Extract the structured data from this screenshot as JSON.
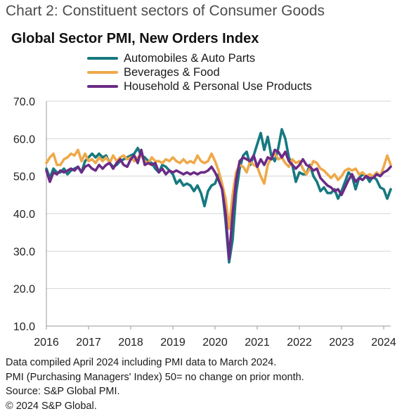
{
  "header": {
    "heading": "Chart 2: Constituent sectors of Consumer Goods",
    "title": "Global Sector PMI, New Orders Index"
  },
  "colors": {
    "automobiles": "#16797f",
    "beverages": "#efa94a",
    "household": "#6b2b86",
    "gridline": "#d4d4d4",
    "axis": "#9a9a9a"
  },
  "footer": {
    "notes": [
      "Data compiled April 2024 including PMI data to March 2024.",
      "PMI (Purchasing Managers' Index) 50= no change on prior month.",
      "Source: S&P Global PMI.",
      "© 2024 S&P Global."
    ]
  },
  "chart_data": {
    "type": "line",
    "title": "Global Sector PMI, New Orders Index",
    "xlabel": "",
    "ylabel": "",
    "ylim": [
      10,
      70
    ],
    "yticks": [
      "10.0",
      "20.0",
      "30.0",
      "40.0",
      "50.0",
      "60.0",
      "70.0"
    ],
    "xticks": [
      "2016",
      "2017",
      "2018",
      "2019",
      "2020",
      "2021",
      "2022",
      "2023",
      "2024"
    ],
    "xrange": [
      "2016-01",
      "2024-03"
    ],
    "grid": "horizontal",
    "legend_position": "top",
    "series": [
      {
        "name": "Automobiles & Auto Parts",
        "color_key": "automobiles",
        "start": "2016-01",
        "values": [
          52.0,
          49.5,
          52.0,
          51.0,
          51.0,
          52.0,
          50.5,
          51.5,
          52.0,
          52.5,
          51.0,
          54.0,
          55.0,
          56.0,
          55.0,
          56.0,
          55.0,
          55.5,
          53.5,
          52.5,
          53.0,
          54.0,
          54.5,
          55.0,
          55.5,
          56.0,
          57.5,
          55.5,
          55.0,
          54.0,
          53.5,
          52.0,
          51.0,
          53.0,
          52.5,
          51.5,
          50.5,
          48.0,
          49.0,
          47.5,
          48.0,
          47.5,
          46.0,
          47.5,
          45.5,
          42.0,
          46.0,
          47.5,
          48.0,
          50.5,
          47.0,
          38.0,
          27.0,
          33.0,
          45.5,
          52.0,
          55.5,
          56.5,
          53.0,
          55.5,
          58.5,
          61.5,
          57.0,
          60.5,
          55.5,
          54.0,
          57.5,
          62.5,
          60.0,
          55.0,
          53.0,
          48.5,
          51.0,
          50.5,
          50.5,
          53.0,
          50.0,
          48.5,
          46.0,
          47.0,
          45.5,
          45.5,
          46.5,
          44.0,
          46.0,
          48.5,
          51.0,
          50.0,
          46.5,
          49.5,
          50.5,
          50.0,
          48.5,
          50.0,
          49.0,
          47.0,
          46.5,
          44.0,
          46.5
        ]
      },
      {
        "name": "Beverages & Food",
        "color_key": "beverages",
        "start": "2016-01",
        "values": [
          53.5,
          55.0,
          56.0,
          53.0,
          53.0,
          54.5,
          55.0,
          56.0,
          55.5,
          57.0,
          54.0,
          56.0,
          54.0,
          54.5,
          53.5,
          55.0,
          54.0,
          55.0,
          53.5,
          55.5,
          54.0,
          55.0,
          55.5,
          54.5,
          55.0,
          54.0,
          55.0,
          55.5,
          54.0,
          53.5,
          55.0,
          54.0,
          54.0,
          53.5,
          54.5,
          54.0,
          55.0,
          54.0,
          53.5,
          54.5,
          53.5,
          54.0,
          53.5,
          55.5,
          54.0,
          53.5,
          54.0,
          56.0,
          54.0,
          51.5,
          48.0,
          44.0,
          36.0,
          45.0,
          51.0,
          53.0,
          52.5,
          51.0,
          54.0,
          53.0,
          52.5,
          50.0,
          48.0,
          53.0,
          55.0,
          56.0,
          54.5,
          55.0,
          53.5,
          52.5,
          54.5,
          53.5,
          54.0,
          52.0,
          50.5,
          52.0,
          54.0,
          53.5,
          52.0,
          51.5,
          50.5,
          49.5,
          50.5,
          49.0,
          50.0,
          51.5,
          52.0,
          51.5,
          52.0,
          50.5,
          51.0,
          50.0,
          50.5,
          50.0,
          51.0,
          50.0,
          52.5,
          55.5,
          53.0
        ]
      },
      {
        "name": "Household & Personal Use Products",
        "color_key": "household",
        "start": "2016-01",
        "values": [
          51.5,
          48.5,
          51.0,
          50.5,
          51.5,
          51.0,
          51.5,
          52.0,
          51.5,
          52.5,
          51.0,
          52.5,
          53.0,
          52.0,
          51.5,
          53.0,
          52.0,
          53.0,
          53.5,
          52.0,
          53.5,
          54.5,
          53.0,
          52.5,
          54.5,
          55.5,
          53.5,
          57.0,
          53.0,
          53.5,
          53.0,
          53.5,
          51.0,
          52.0,
          50.5,
          51.5,
          51.0,
          51.5,
          51.0,
          50.5,
          51.0,
          50.5,
          51.0,
          50.5,
          51.0,
          51.0,
          51.5,
          52.5,
          51.0,
          49.0,
          46.5,
          40.0,
          28.0,
          40.0,
          49.0,
          54.0,
          55.0,
          54.5,
          54.0,
          55.5,
          52.5,
          54.5,
          53.0,
          55.0,
          54.5,
          57.0,
          56.5,
          55.0,
          56.5,
          54.0,
          53.0,
          52.0,
          53.0,
          54.5,
          53.0,
          52.5,
          51.5,
          52.0,
          49.5,
          48.5,
          47.5,
          47.0,
          46.0,
          46.5,
          45.0,
          47.0,
          49.0,
          50.5,
          48.5,
          49.5,
          49.0,
          50.0,
          49.5,
          49.5,
          50.5,
          50.0,
          51.0,
          51.5,
          52.5
        ]
      }
    ]
  }
}
